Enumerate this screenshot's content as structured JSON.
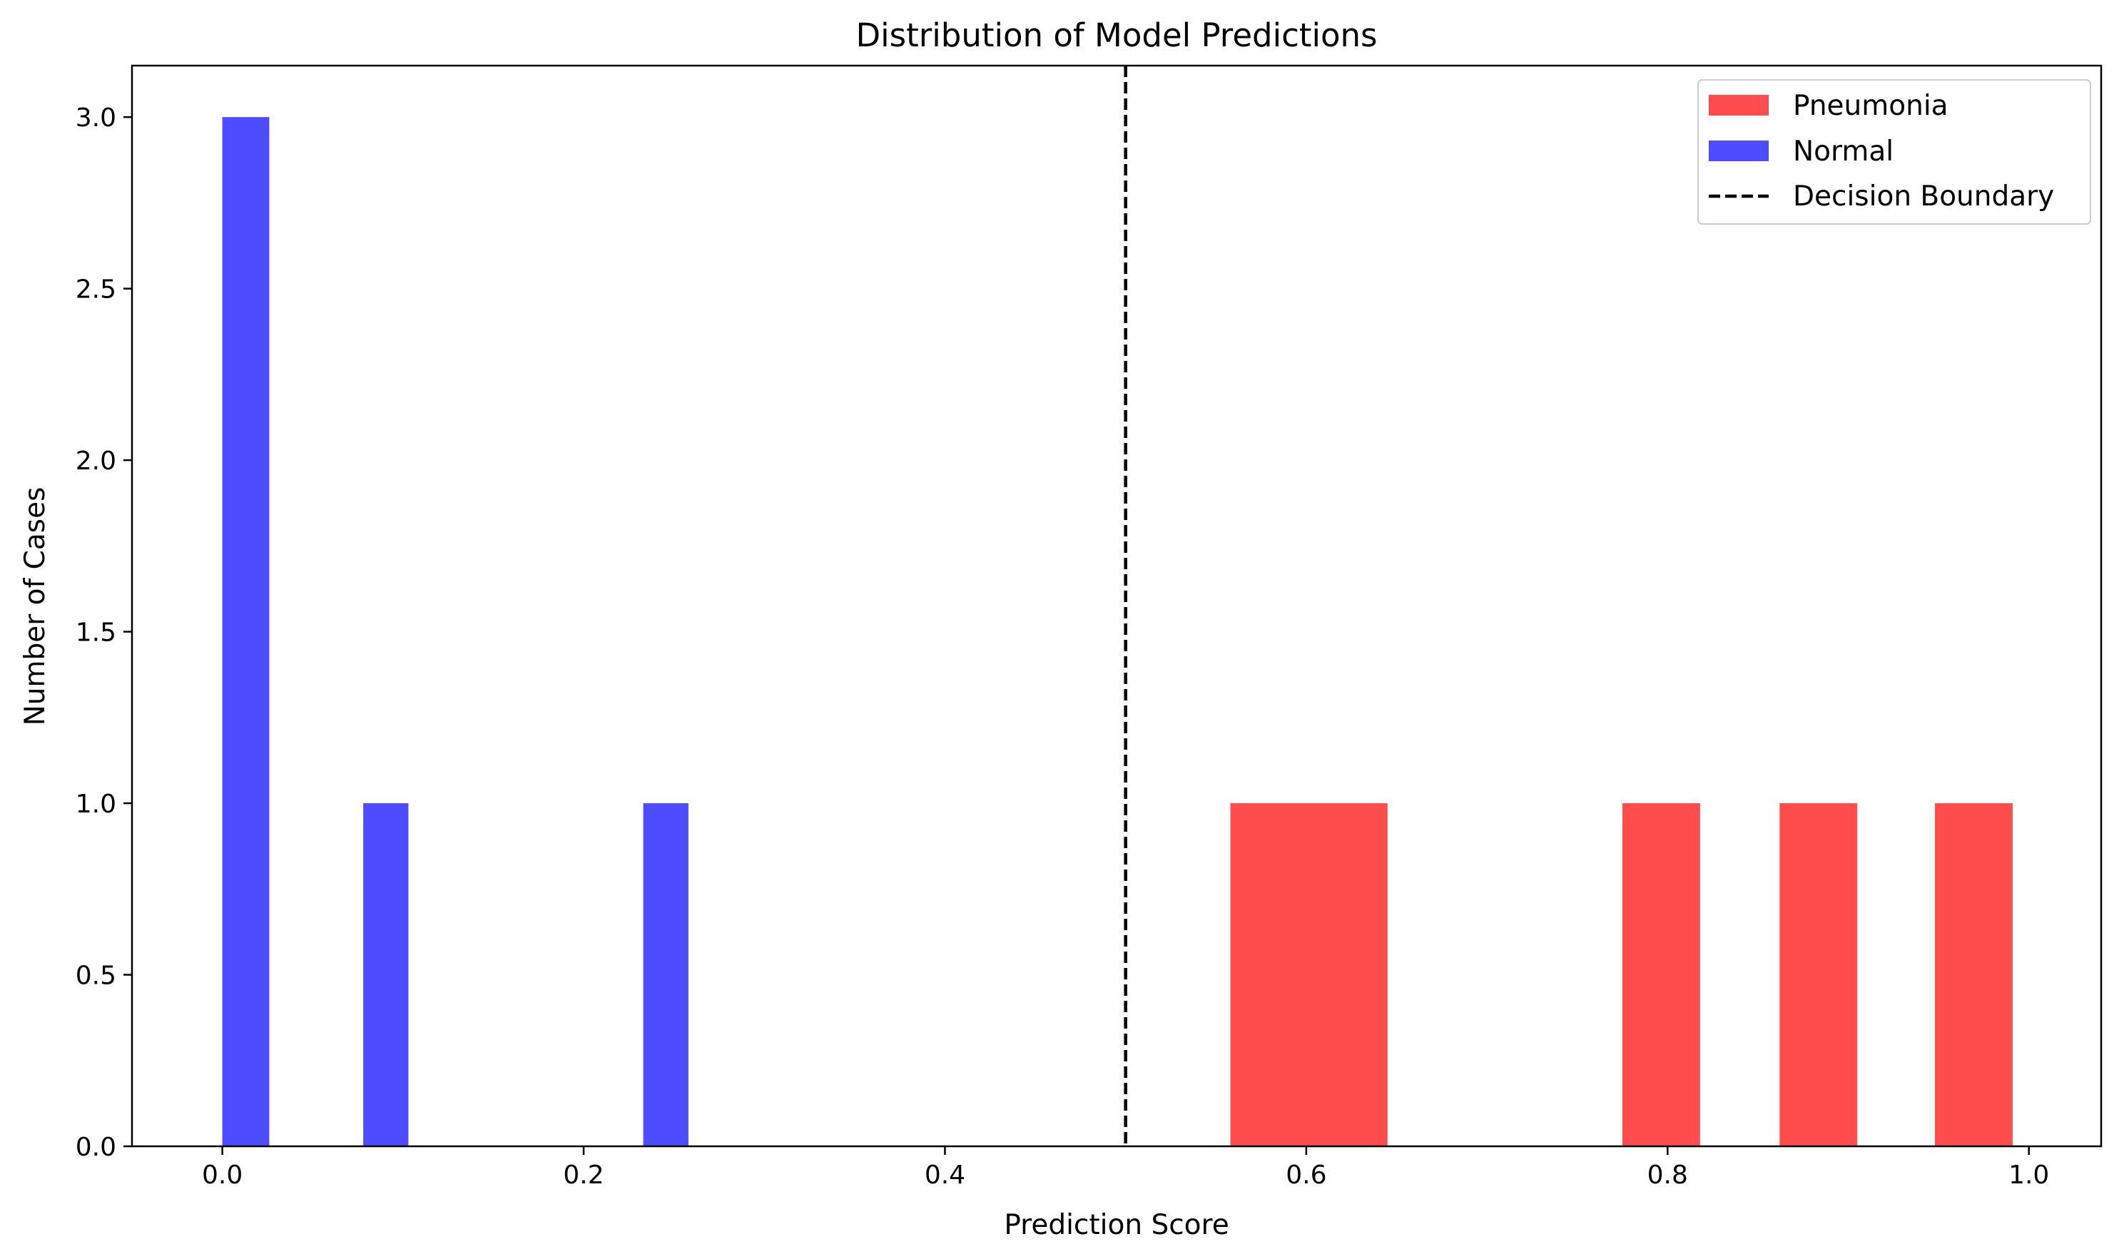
{
  "chart_data": {
    "type": "bar",
    "title": "Distribution of Model Predictions",
    "xlabel": "Prediction Score",
    "ylabel": "Number of Cases",
    "xlim": [
      -0.05,
      1.04
    ],
    "ylim": [
      0,
      3.15
    ],
    "xticks": [
      0.0,
      0.2,
      0.4,
      0.6,
      0.8,
      1.0
    ],
    "xtick_labels": [
      "0.0",
      "0.2",
      "0.4",
      "0.6",
      "0.8",
      "1.0"
    ],
    "yticks": [
      0.0,
      0.5,
      1.0,
      1.5,
      2.0,
      2.5,
      3.0
    ],
    "ytick_labels": [
      "0.0",
      "0.5",
      "1.0",
      "1.5",
      "2.0",
      "2.5",
      "3.0"
    ],
    "grid": false,
    "legend_position": "top-right",
    "series": [
      {
        "name": "Pneumonia",
        "color": "#ff4d4d",
        "bars": [
          {
            "x0": 0.558,
            "x1": 0.645,
            "value": 1
          },
          {
            "x0": 0.775,
            "x1": 0.818,
            "value": 1
          },
          {
            "x0": 0.862,
            "x1": 0.905,
            "value": 1
          },
          {
            "x0": 0.948,
            "x1": 0.991,
            "value": 1
          }
        ]
      },
      {
        "name": "Normal",
        "color": "#4d4dff",
        "bars": [
          {
            "x0": 0.0,
            "x1": 0.026,
            "value": 3
          },
          {
            "x0": 0.078,
            "x1": 0.103,
            "value": 1
          },
          {
            "x0": 0.233,
            "x1": 0.258,
            "value": 1
          }
        ]
      }
    ],
    "reference_lines": [
      {
        "name": "Decision Boundary",
        "x": 0.5,
        "style": "dashed",
        "color": "#000000"
      }
    ]
  }
}
